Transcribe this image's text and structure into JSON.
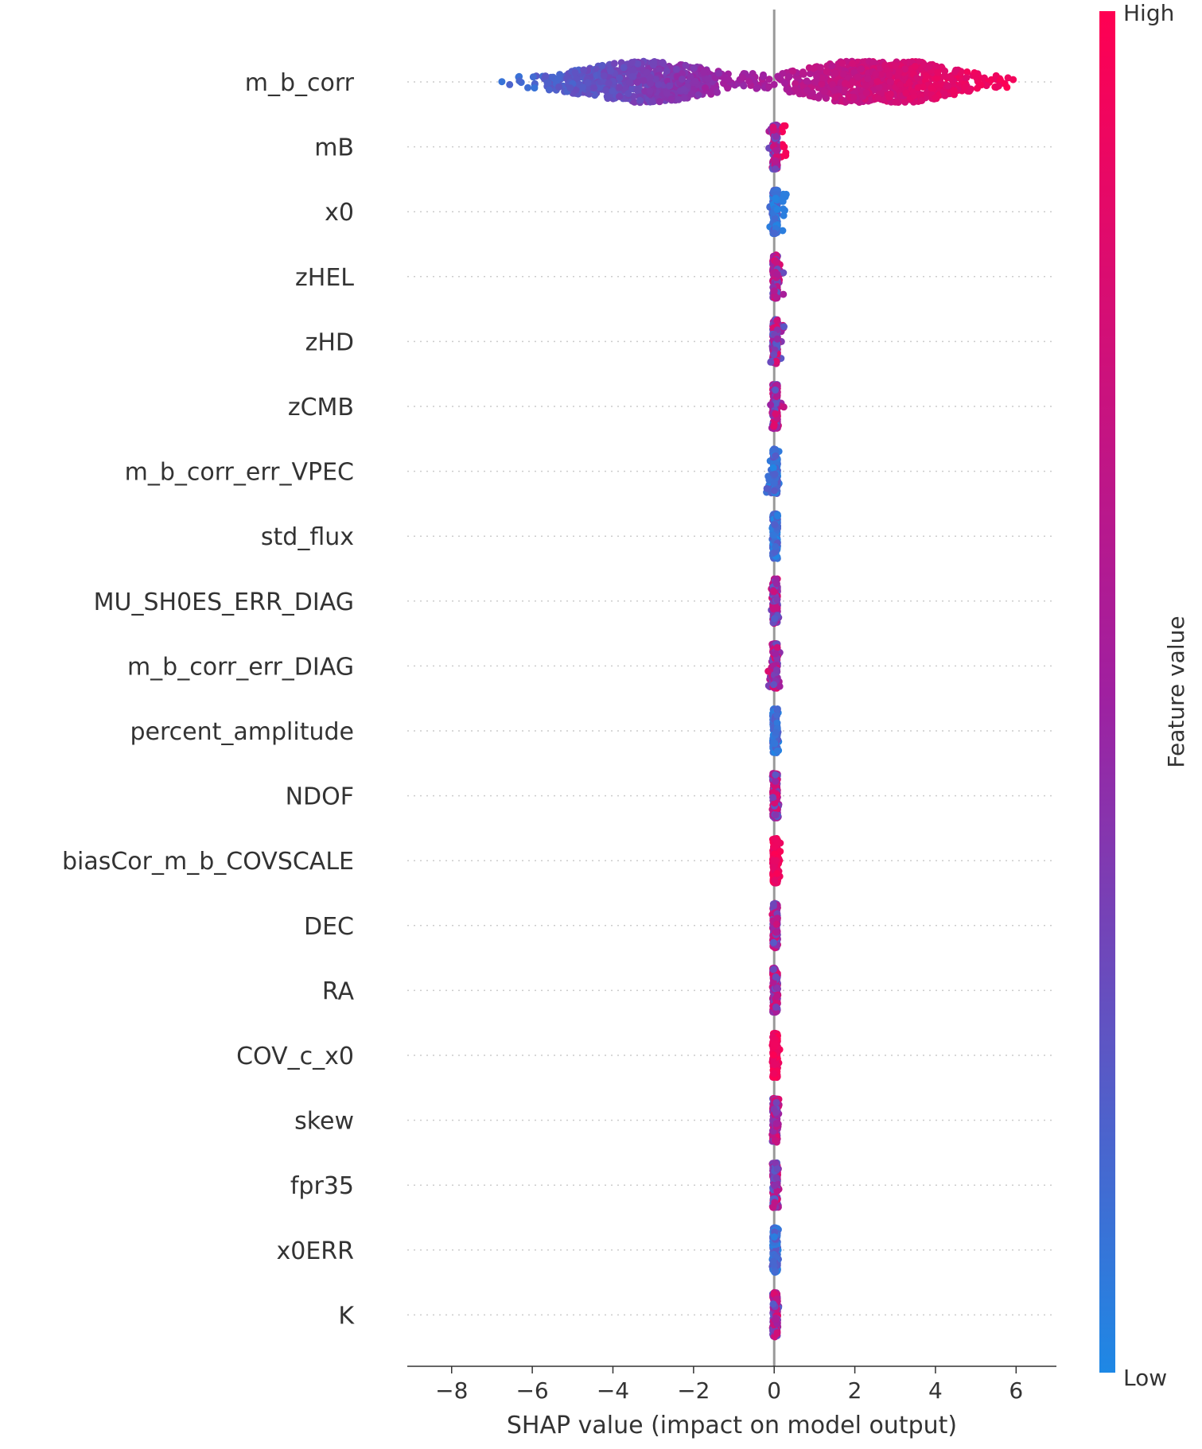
{
  "chart_data": {
    "type": "scatter",
    "subtype": "shap-beeswarm",
    "title": "",
    "xlabel": "SHAP value (impact on model output)",
    "ylabel": "",
    "xlim": [
      -9.1,
      7.0
    ],
    "xticks": [
      -8,
      -6,
      -4,
      -2,
      0,
      2,
      4,
      6
    ],
    "xtick_labels": [
      "−8",
      "−6",
      "−4",
      "−2",
      "0",
      "2",
      "4",
      "6"
    ],
    "grid": "dotted horizontal row guides",
    "zero_line": 0,
    "colorbar": {
      "title": "Feature value",
      "high_label": "High",
      "low_label": "Low",
      "low_color": "#1e88e5",
      "mid_color": "#a020a0",
      "high_color": "#ff0052"
    },
    "features": [
      {
        "name": "m_b_corr",
        "shap_min": -8.3,
        "shap_max": 6.3,
        "color_trend": "low-to-high",
        "dominant": "mixed"
      },
      {
        "name": "mB",
        "shap_min": -0.15,
        "shap_max": 0.3,
        "color_trend": "mixed",
        "dominant": "mixed"
      },
      {
        "name": "x0",
        "shap_min": -0.15,
        "shap_max": 0.3,
        "color_trend": "high-to-low",
        "dominant": "low"
      },
      {
        "name": "zHEL",
        "shap_min": -0.1,
        "shap_max": 0.25,
        "color_trend": "mixed",
        "dominant": "mixed"
      },
      {
        "name": "zHD",
        "shap_min": -0.1,
        "shap_max": 0.25,
        "color_trend": "mixed",
        "dominant": "mixed"
      },
      {
        "name": "zCMB",
        "shap_min": -0.1,
        "shap_max": 0.25,
        "color_trend": "mixed",
        "dominant": "mixed"
      },
      {
        "name": "m_b_corr_err_VPEC",
        "shap_min": -0.2,
        "shap_max": 0.15,
        "color_trend": "mixed",
        "dominant": "low"
      },
      {
        "name": "std_flux",
        "shap_min": -0.05,
        "shap_max": 0.1,
        "color_trend": "mixed",
        "dominant": "low"
      },
      {
        "name": "MU_SH0ES_ERR_DIAG",
        "shap_min": -0.1,
        "shap_max": 0.15,
        "color_trend": "mixed",
        "dominant": "mixed"
      },
      {
        "name": "m_b_corr_err_DIAG",
        "shap_min": -0.15,
        "shap_max": 0.15,
        "color_trend": "mixed",
        "dominant": "mixed"
      },
      {
        "name": "percent_amplitude",
        "shap_min": -0.05,
        "shap_max": 0.12,
        "color_trend": "mixed",
        "dominant": "low"
      },
      {
        "name": "NDOF",
        "shap_min": -0.05,
        "shap_max": 0.12,
        "color_trend": "mixed",
        "dominant": "mixed"
      },
      {
        "name": "biasCor_m_b_COVSCALE",
        "shap_min": -0.05,
        "shap_max": 0.15,
        "color_trend": "mixed",
        "dominant": "high"
      },
      {
        "name": "DEC",
        "shap_min": -0.05,
        "shap_max": 0.12,
        "color_trend": "mixed",
        "dominant": "mixed"
      },
      {
        "name": "RA",
        "shap_min": -0.05,
        "shap_max": 0.12,
        "color_trend": "mixed",
        "dominant": "mixed"
      },
      {
        "name": "COV_c_x0",
        "shap_min": -0.05,
        "shap_max": 0.15,
        "color_trend": "mixed",
        "dominant": "high"
      },
      {
        "name": "skew",
        "shap_min": -0.05,
        "shap_max": 0.12,
        "color_trend": "mixed",
        "dominant": "mixed"
      },
      {
        "name": "fpr35",
        "shap_min": -0.05,
        "shap_max": 0.12,
        "color_trend": "mixed",
        "dominant": "mixed"
      },
      {
        "name": "x0ERR",
        "shap_min": -0.05,
        "shap_max": 0.12,
        "color_trend": "mixed",
        "dominant": "low"
      },
      {
        "name": "K",
        "shap_min": -0.05,
        "shap_max": 0.12,
        "color_trend": "mixed",
        "dominant": "mixed"
      }
    ]
  }
}
